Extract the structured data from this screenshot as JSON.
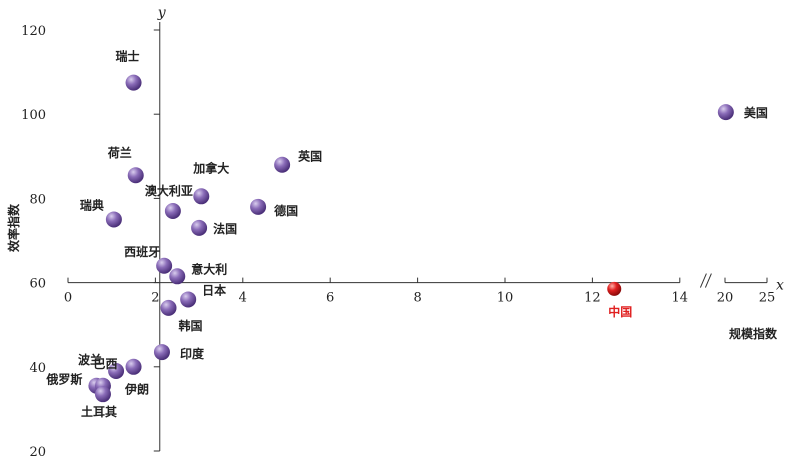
{
  "chart_data": {
    "type": "scatter",
    "title": "",
    "xlabel": "规模指数",
    "ylabel": "效率指数",
    "x_axis_letter": "x",
    "y_axis_letter": "y",
    "x_break": true,
    "xlim_main": [
      0,
      14
    ],
    "xlim_after_break": [
      20,
      25
    ],
    "ylim": [
      20,
      120
    ],
    "x_ticks_main": [
      0,
      2,
      4,
      6,
      8,
      10,
      12,
      14
    ],
    "x_ticks_after_break": [
      20,
      25
    ],
    "y_ticks": [
      20,
      40,
      60,
      80,
      100,
      120
    ],
    "y_cross": 60,
    "x_cross": 2.1,
    "grid": false,
    "colors": {
      "point": "#7e62a8",
      "point_dark": "#5a3a8c",
      "highlight": "#e02020",
      "axis": "#333333"
    },
    "points": [
      {
        "name": "瑞士",
        "x": 1.5,
        "y": 107.5
      },
      {
        "name": "美国",
        "x": 20.1,
        "y": 100.5
      },
      {
        "name": "荷兰",
        "x": 1.55,
        "y": 85.5
      },
      {
        "name": "英国",
        "x": 4.9,
        "y": 88
      },
      {
        "name": "加拿大",
        "x": 3.05,
        "y": 80.5
      },
      {
        "name": "澳大利亚",
        "x": 2.4,
        "y": 77
      },
      {
        "name": "瑞典",
        "x": 1.05,
        "y": 75
      },
      {
        "name": "德国",
        "x": 4.35,
        "y": 78
      },
      {
        "name": "法国",
        "x": 3.0,
        "y": 73
      },
      {
        "name": "西班牙",
        "x": 2.2,
        "y": 64
      },
      {
        "name": "意大利",
        "x": 2.5,
        "y": 61.5
      },
      {
        "name": "日本",
        "x": 2.75,
        "y": 56
      },
      {
        "name": "韩国",
        "x": 2.3,
        "y": 54
      },
      {
        "name": "中国",
        "x": 12.5,
        "y": 58.5,
        "highlight": true
      },
      {
        "name": "巴西",
        "x": 1.5,
        "y": 40
      },
      {
        "name": "印度",
        "x": 2.15,
        "y": 43.5
      },
      {
        "name": "波兰",
        "x": 1.1,
        "y": 39
      },
      {
        "name": "俄罗斯",
        "x": 0.65,
        "y": 35.5
      },
      {
        "name": "伊朗",
        "x": 0.8,
        "y": 35.5
      },
      {
        "name": "土耳其",
        "x": 0.8,
        "y": 33.5
      }
    ]
  }
}
